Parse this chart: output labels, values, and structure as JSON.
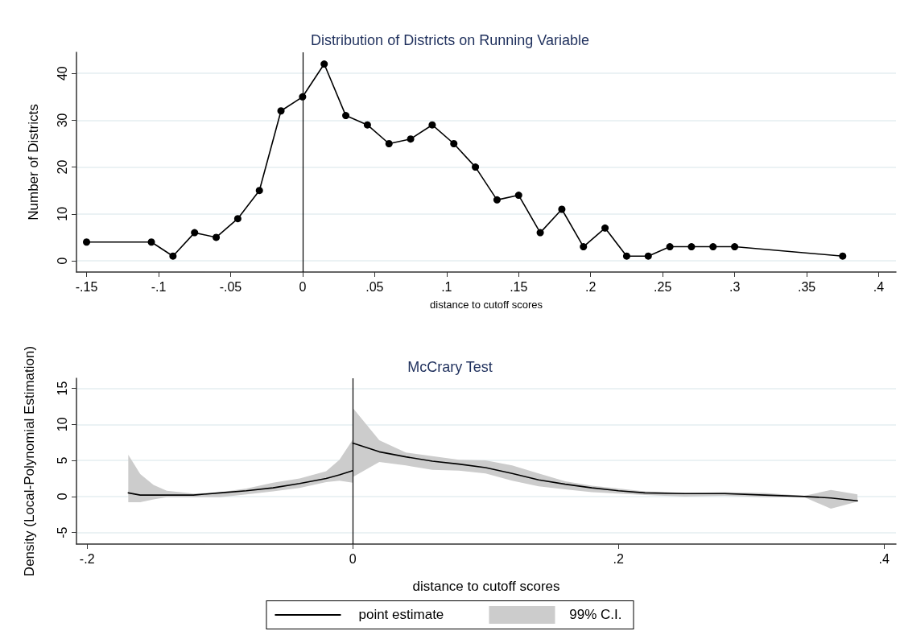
{
  "chart_data": [
    {
      "type": "line",
      "title": "Distribution of Districts on Running Variable",
      "xlabel": "distance to cutoff scores",
      "ylabel": "Number of Districts",
      "series": [
        {
          "color": "#000000",
          "x": [
            -0.15,
            -0.105,
            -0.09,
            -0.075,
            -0.06,
            -0.045,
            -0.03,
            -0.015,
            0,
            0.015,
            0.03,
            0.045,
            0.06,
            0.075,
            0.09,
            0.105,
            0.12,
            0.135,
            0.15,
            0.165,
            0.18,
            0.195,
            0.21,
            0.225,
            0.24,
            0.255,
            0.27,
            0.285,
            0.3,
            0.375
          ],
          "values": [
            4,
            4,
            1,
            6,
            5,
            9,
            15,
            32,
            35,
            42,
            31,
            29,
            25,
            26,
            29,
            25,
            20,
            13,
            14,
            6,
            11,
            3,
            7,
            1,
            1,
            3,
            3,
            3,
            3,
            1
          ]
        }
      ],
      "xlim": [
        -0.157,
        0.412
      ],
      "xticks": [
        {
          "value": -0.15,
          "label": "-.15"
        },
        {
          "value": -0.1,
          "label": "-.1"
        },
        {
          "value": -0.05,
          "label": "-.05"
        },
        0,
        {
          "value": 0.05,
          "label": ".05"
        },
        {
          "value": 0.1,
          "label": ".1"
        },
        {
          "value": 0.15,
          "label": ".15"
        },
        {
          "value": 0.2,
          "label": ".2"
        },
        {
          "value": 0.25,
          "label": ".25"
        },
        {
          "value": 0.3,
          "label": ".3"
        },
        {
          "value": 0.35,
          "label": ".35"
        },
        {
          "value": 0.4,
          "label": ".4"
        }
      ],
      "ylim": [
        -2.4,
        44.5
      ],
      "yticks": [
        0,
        10,
        20,
        30,
        40
      ],
      "ref_lines": [
        {
          "axis": "x",
          "value": 0,
          "color": "#000000"
        }
      ],
      "grid": "y",
      "legend": false,
      "marker": "circle",
      "line_style": "solid"
    },
    {
      "type": "line",
      "title": "McCrary Test",
      "xlabel": "distance to cutoff scores",
      "ylabel": "Density (Local-Polynomial Estimation)",
      "annotations": [
        "99% C.I."
      ],
      "series": [
        {
          "name": "point estimate",
          "color": "#000000",
          "x": [
            -0.169,
            -0.16,
            -0.15,
            -0.14,
            -0.12,
            -0.1,
            -0.08,
            -0.06,
            -0.04,
            -0.02,
            -0.01,
            0
          ],
          "values": [
            0.5,
            0.2,
            0.2,
            0.2,
            0.2,
            0.5,
            0.8,
            1.2,
            1.8,
            2.5,
            3,
            3.6
          ],
          "lower": [
            -0.8,
            -0.8,
            -0.4,
            -0.1,
            -0.1,
            -0.1,
            0.3,
            0.7,
            1.2,
            2,
            2.2,
            1.9
          ],
          "upper": [
            5.8,
            3.1,
            1.6,
            0.8,
            0.4,
            0.6,
            1.1,
            1.9,
            2.5,
            3.5,
            5.1,
            7.9
          ]
        },
        {
          "color": "#000000",
          "x": [
            0,
            0.02,
            0.04,
            0.06,
            0.08,
            0.1,
            0.12,
            0.14,
            0.16,
            0.18,
            0.2,
            0.22,
            0.25,
            0.28,
            0.31,
            0.34,
            0.36,
            0.38
          ],
          "values": [
            7.4,
            6.2,
            5.5,
            4.9,
            4.5,
            4,
            3.2,
            2.3,
            1.7,
            1.2,
            0.8,
            0.5,
            0.4,
            0.4,
            0.2,
            0,
            -0.2,
            -0.6
          ],
          "lower": [
            2.7,
            4.8,
            4.3,
            3.7,
            3.6,
            3.2,
            2.2,
            1.4,
            1,
            0.6,
            0.4,
            0.2,
            0,
            0.1,
            -0.1,
            -0.1,
            -1.7,
            -0.7
          ],
          "upper": [
            12.3,
            7.8,
            6.1,
            5.6,
            5.1,
            5,
            4.3,
            3.2,
            2.1,
            1.5,
            1.1,
            0.7,
            0.5,
            0.6,
            0.5,
            0.1,
            0.9,
            0.3
          ]
        }
      ],
      "xlim": [
        -0.208,
        0.409
      ],
      "xticks": [
        {
          "value": -0.2,
          "label": "-.2"
        },
        0,
        {
          "value": 0.2,
          "label": ".2"
        },
        {
          "value": 0.4,
          "label": ".4"
        }
      ],
      "ylim": [
        -6.6,
        16.4
      ],
      "yticks": [
        -5,
        0,
        5,
        10,
        15
      ],
      "ref_lines": [
        {
          "axis": "x",
          "value": 0,
          "color": "#000000"
        }
      ],
      "grid": "y",
      "legend": "bottom",
      "marker": "none",
      "line_style": "solid"
    }
  ]
}
